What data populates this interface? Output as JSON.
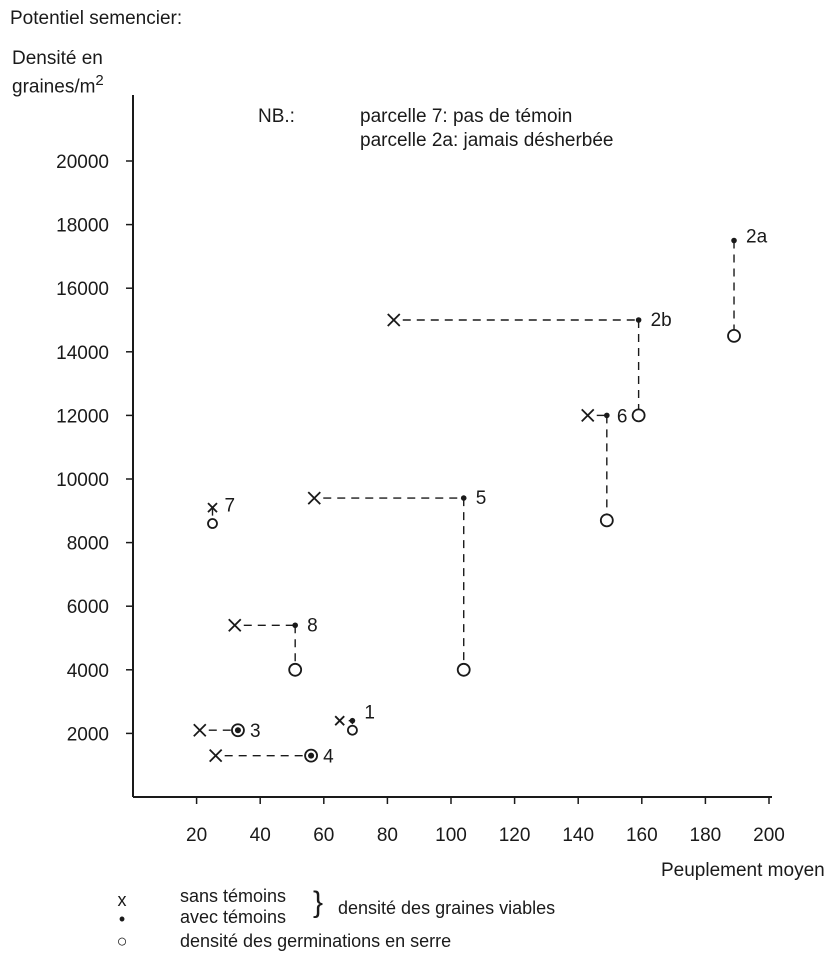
{
  "chart_data": {
    "type": "scatter",
    "title": "Potentiel semencier:",
    "ylabel_line1": "Densité en",
    "ylabel_line2": "graines/m",
    "ylabel_sup": "2",
    "xlabel": "Peuplement moyen",
    "xlim": [
      0,
      210
    ],
    "ylim": [
      0,
      21000
    ],
    "x_ticks": [
      20,
      40,
      60,
      80,
      100,
      120,
      140,
      160,
      180,
      200
    ],
    "y_ticks": [
      2000,
      4000,
      6000,
      8000,
      10000,
      12000,
      14000,
      16000,
      18000,
      20000
    ],
    "note": {
      "prefix": "NB.:",
      "line1": "parcelle 7: pas de témoin",
      "line2": "parcelle 2a: jamais désherbée"
    },
    "parcels": [
      {
        "label": "1",
        "sans": [
          65,
          2400
        ],
        "avec": [
          69,
          2400
        ],
        "serre": [
          69,
          2100
        ]
      },
      {
        "label": "2a",
        "sans": null,
        "avec": [
          189,
          17500
        ],
        "serre": [
          189,
          14500
        ]
      },
      {
        "label": "2b",
        "sans": [
          82,
          15000
        ],
        "avec": [
          159,
          15000
        ],
        "serre": [
          159,
          12000
        ]
      },
      {
        "label": "3",
        "sans": [
          21,
          2100
        ],
        "avec": [
          33,
          2100
        ],
        "serre": [
          33,
          2100
        ]
      },
      {
        "label": "4",
        "sans": [
          26,
          1300
        ],
        "avec": [
          56,
          1300
        ],
        "serre": [
          56,
          1300
        ]
      },
      {
        "label": "5",
        "sans": [
          57,
          9400
        ],
        "avec": [
          104,
          9400
        ],
        "serre": [
          104,
          4000
        ]
      },
      {
        "label": "6",
        "sans": [
          143,
          12000
        ],
        "avec": [
          149,
          12000
        ],
        "serre": [
          149,
          8700
        ]
      },
      {
        "label": "7",
        "sans": [
          25,
          9100
        ],
        "avec": null,
        "serre": [
          25,
          8600
        ]
      },
      {
        "label": "8",
        "sans": [
          32,
          5400
        ],
        "avec": [
          51,
          5400
        ],
        "serre": [
          51,
          4000
        ]
      }
    ],
    "legend": {
      "sans_symbol": "x",
      "sans_label": "sans témoins",
      "avec_symbol": "•",
      "avec_label": "avec témoins",
      "group_label": "densité des graines viables",
      "serre_symbol": "○",
      "serre_label": "densité des germinations en serre"
    },
    "grid": false,
    "legend_placement": "bottom"
  }
}
